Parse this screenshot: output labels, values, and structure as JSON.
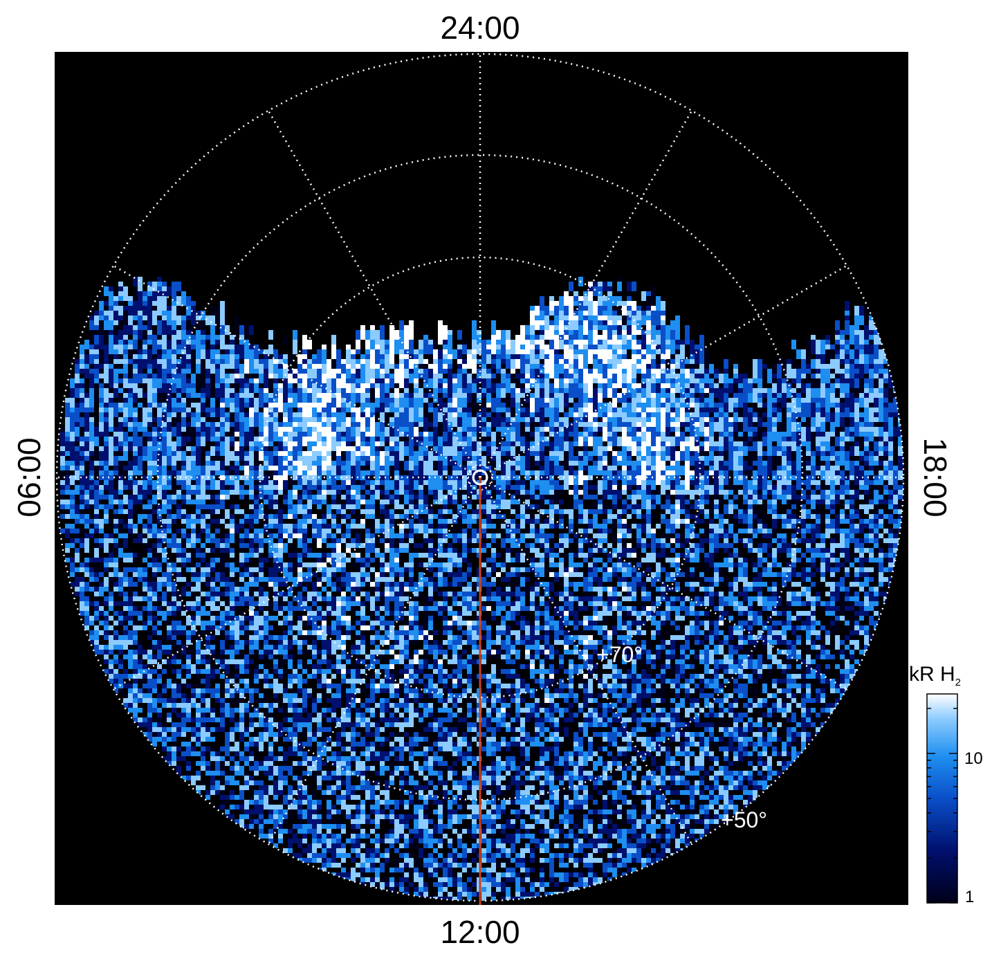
{
  "image": {
    "local_time_labels": {
      "top": "24:00",
      "bottom": "12:00",
      "left": "06:00",
      "right": "18:00"
    },
    "latitude_labels": [
      "+70°",
      "+50°"
    ],
    "colorbar": {
      "title": "kR H",
      "title_subscript": "2",
      "tick_labels": [
        "10",
        "1"
      ],
      "scale": "log",
      "colors": [
        "#000018",
        "#00106e",
        "#0a4fc8",
        "#1e8ef0",
        "#8ccbff",
        "#ffffff"
      ]
    },
    "colors": {
      "background": "#000000",
      "grid": "#ffffff",
      "meridian_line": "#c8401c"
    }
  }
}
